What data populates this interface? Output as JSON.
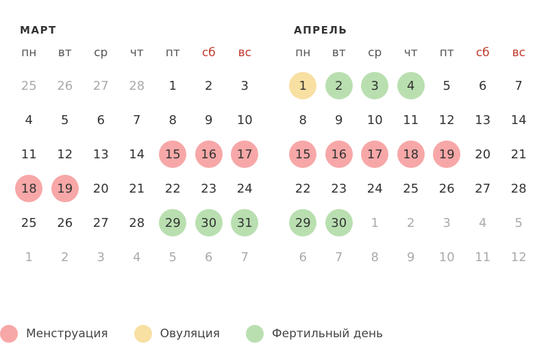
{
  "weekdays": [
    {
      "label": "пн",
      "weekend": false
    },
    {
      "label": "вт",
      "weekend": false
    },
    {
      "label": "ср",
      "weekend": false
    },
    {
      "label": "чт",
      "weekend": false
    },
    {
      "label": "пт",
      "weekend": false
    },
    {
      "label": "сб",
      "weekend": true
    },
    {
      "label": "вс",
      "weekend": true
    }
  ],
  "colors": {
    "menstruation": "#f7a7a7",
    "ovulation": "#f8e0a3",
    "fertile": "#b9dfb0",
    "weekend_text": "#c0392b"
  },
  "months": [
    {
      "key": "march",
      "title": "МАРТ",
      "weeks": [
        [
          {
            "d": "25",
            "muted": true
          },
          {
            "d": "26",
            "muted": true
          },
          {
            "d": "27",
            "muted": true
          },
          {
            "d": "28",
            "muted": true
          },
          {
            "d": "1"
          },
          {
            "d": "2"
          },
          {
            "d": "3"
          }
        ],
        [
          {
            "d": "4"
          },
          {
            "d": "5"
          },
          {
            "d": "6"
          },
          {
            "d": "7"
          },
          {
            "d": "8"
          },
          {
            "d": "9"
          },
          {
            "d": "10"
          }
        ],
        [
          {
            "d": "11"
          },
          {
            "d": "12"
          },
          {
            "d": "13"
          },
          {
            "d": "14"
          },
          {
            "d": "15",
            "mark": "menstruation"
          },
          {
            "d": "16",
            "mark": "menstruation"
          },
          {
            "d": "17",
            "mark": "menstruation"
          }
        ],
        [
          {
            "d": "18",
            "mark": "menstruation"
          },
          {
            "d": "19",
            "mark": "menstruation"
          },
          {
            "d": "20"
          },
          {
            "d": "21"
          },
          {
            "d": "22"
          },
          {
            "d": "23"
          },
          {
            "d": "24"
          }
        ],
        [
          {
            "d": "25"
          },
          {
            "d": "26"
          },
          {
            "d": "27"
          },
          {
            "d": "28"
          },
          {
            "d": "29",
            "mark": "fertile"
          },
          {
            "d": "30",
            "mark": "fertile"
          },
          {
            "d": "31",
            "mark": "fertile"
          }
        ],
        [
          {
            "d": "1",
            "muted": true
          },
          {
            "d": "2",
            "muted": true
          },
          {
            "d": "3",
            "muted": true
          },
          {
            "d": "4",
            "muted": true
          },
          {
            "d": "5",
            "muted": true
          },
          {
            "d": "6",
            "muted": true
          },
          {
            "d": "7",
            "muted": true
          }
        ]
      ]
    },
    {
      "key": "april",
      "title": "АПРЕЛЬ",
      "weeks": [
        [
          {
            "d": "1",
            "mark": "ovulation"
          },
          {
            "d": "2",
            "mark": "fertile"
          },
          {
            "d": "3",
            "mark": "fertile"
          },
          {
            "d": "4",
            "mark": "fertile"
          },
          {
            "d": "5"
          },
          {
            "d": "6"
          },
          {
            "d": "7"
          }
        ],
        [
          {
            "d": "8"
          },
          {
            "d": "9"
          },
          {
            "d": "10"
          },
          {
            "d": "11"
          },
          {
            "d": "12"
          },
          {
            "d": "13"
          },
          {
            "d": "14"
          }
        ],
        [
          {
            "d": "15",
            "mark": "menstruation"
          },
          {
            "d": "16",
            "mark": "menstruation"
          },
          {
            "d": "17",
            "mark": "menstruation"
          },
          {
            "d": "18",
            "mark": "menstruation"
          },
          {
            "d": "19",
            "mark": "menstruation"
          },
          {
            "d": "20"
          },
          {
            "d": "21"
          }
        ],
        [
          {
            "d": "22"
          },
          {
            "d": "23"
          },
          {
            "d": "24"
          },
          {
            "d": "25"
          },
          {
            "d": "26"
          },
          {
            "d": "27"
          },
          {
            "d": "28"
          }
        ],
        [
          {
            "d": "29",
            "mark": "fertile"
          },
          {
            "d": "30",
            "mark": "fertile"
          },
          {
            "d": "1",
            "muted": true
          },
          {
            "d": "2",
            "muted": true
          },
          {
            "d": "3",
            "muted": true
          },
          {
            "d": "4",
            "muted": true
          },
          {
            "d": "5",
            "muted": true
          }
        ],
        [
          {
            "d": "6",
            "muted": true
          },
          {
            "d": "7",
            "muted": true
          },
          {
            "d": "8",
            "muted": true
          },
          {
            "d": "9",
            "muted": true
          },
          {
            "d": "10",
            "muted": true
          },
          {
            "d": "11",
            "muted": true
          },
          {
            "d": "12",
            "muted": true
          }
        ]
      ]
    }
  ],
  "legend": [
    {
      "key": "menstruation",
      "label": "Менструация"
    },
    {
      "key": "ovulation",
      "label": "Овуляция"
    },
    {
      "key": "fertile",
      "label": "Фертильный день"
    }
  ]
}
